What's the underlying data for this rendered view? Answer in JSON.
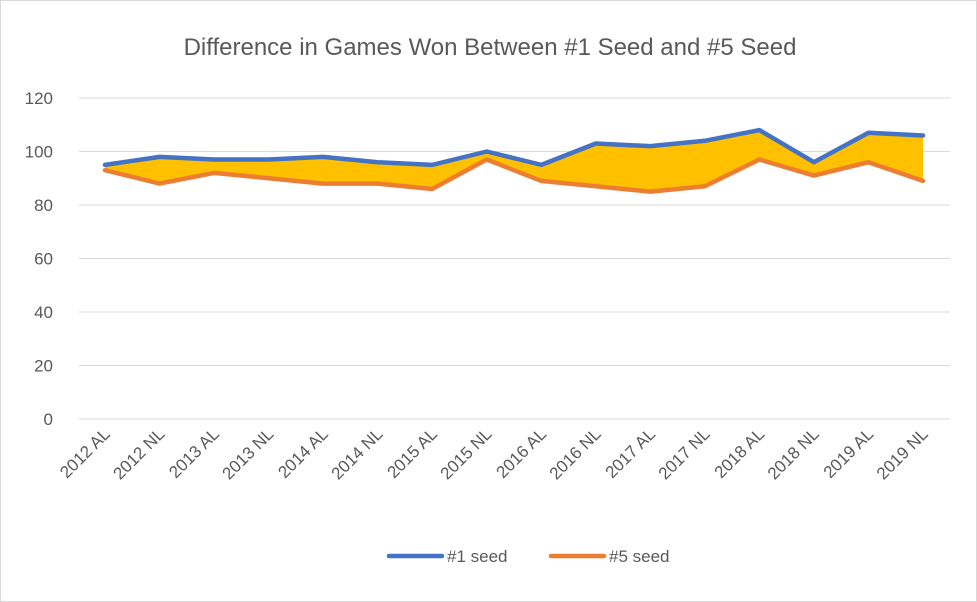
{
  "chart_data": {
    "type": "line",
    "title": "Difference in Games Won Between #1 Seed and #5 Seed",
    "xlabel": "",
    "ylabel": "",
    "ylim": [
      0,
      120
    ],
    "yticks": [
      0,
      20,
      40,
      60,
      80,
      100,
      120
    ],
    "grid": true,
    "legend_position": "bottom",
    "categories": [
      "2012 AL",
      "2012 NL",
      "2013 AL",
      "2013 NL",
      "2014 AL",
      "2014 NL",
      "2015 AL",
      "2015 NL",
      "2016 AL",
      "2016 NL",
      "2017 AL",
      "2017 NL",
      "2018 AL",
      "2018 NL",
      "2019 AL",
      "2019 NL"
    ],
    "series": [
      {
        "name": "#1 seed",
        "color": "#4472c4",
        "values": [
          95,
          98,
          97,
          97,
          98,
          96,
          95,
          100,
          95,
          103,
          102,
          104,
          108,
          96,
          107,
          106
        ]
      },
      {
        "name": "#5 seed",
        "color": "#ed7d31",
        "values": [
          93,
          88,
          92,
          90,
          88,
          88,
          86,
          97,
          89,
          87,
          85,
          87,
          97,
          91,
          96,
          89
        ]
      }
    ],
    "fill_between": {
      "color": "#ffc000"
    }
  }
}
